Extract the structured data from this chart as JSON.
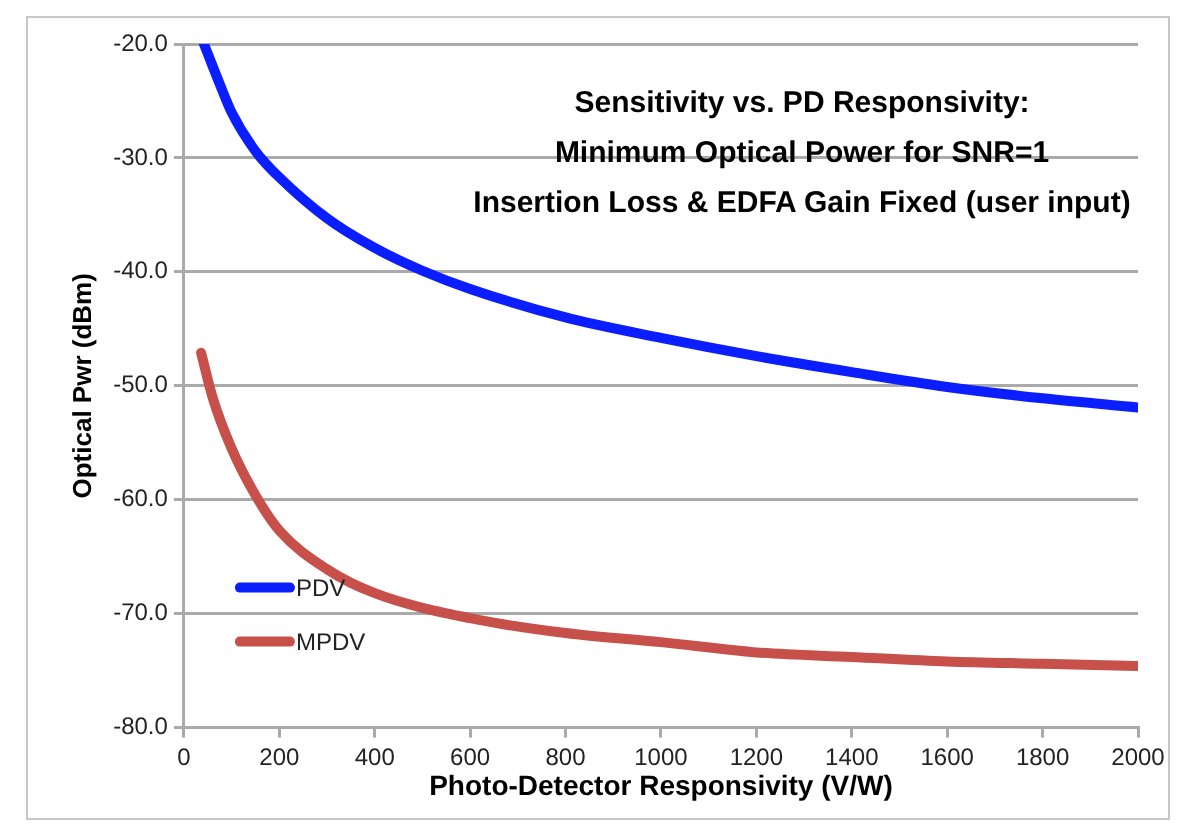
{
  "chart_data": {
    "type": "line",
    "title": "Sensitivity vs. PD Responsivity:\nMinimum Optical Power for SNR=1\nInsertion Loss & EDFA Gain Fixed (user input)",
    "xlabel": "Photo-Detector Responsivity (V/W)",
    "ylabel": "Optical Pwr (dBm)",
    "series": [
      {
        "name": "PDV",
        "color": "#0a1eff",
        "x": [
          42,
          75,
          100,
          150,
          200,
          300,
          400,
          500,
          600,
          800,
          1000,
          1200,
          1400,
          1600,
          1800,
          2000
        ],
        "values": [
          -20,
          -23.5,
          -26,
          -29.4,
          -31.7,
          -35.3,
          -37.9,
          -39.9,
          -41.5,
          -44,
          -45.8,
          -47.4,
          -48.8,
          -50.1,
          -51.1,
          -51.9
        ]
      },
      {
        "name": "MPDV",
        "color": "#c8504b",
        "x": [
          36,
          60,
          100,
          150,
          200,
          300,
          400,
          600,
          800,
          1000,
          1200,
          1400,
          1600,
          1800,
          2000
        ],
        "values": [
          -47.1,
          -51,
          -55.5,
          -59.6,
          -62.7,
          -66.1,
          -68.2,
          -70.4,
          -71.7,
          -72.5,
          -73.4,
          -73.8,
          -74.2,
          -74.4,
          -74.6
        ]
      }
    ],
    "xlim": [
      0,
      2000
    ],
    "xticks": [
      0,
      200,
      400,
      600,
      800,
      1000,
      1200,
      1400,
      1600,
      1800,
      2000
    ],
    "ylim": [
      -80,
      -20
    ],
    "yticks": [
      {
        "value": -80,
        "label": "-80.0"
      },
      {
        "value": -70,
        "label": "-70.0"
      },
      {
        "value": -60,
        "label": "-60.0"
      },
      {
        "value": -50,
        "label": "-50.0"
      },
      {
        "value": -40,
        "label": "-40.0"
      },
      {
        "value": -30,
        "label": "-30.0"
      },
      {
        "value": -20,
        "label": "-20.0"
      }
    ],
    "grid": "y",
    "legend": "bottom left",
    "marker": "none",
    "line_style": "solid"
  }
}
